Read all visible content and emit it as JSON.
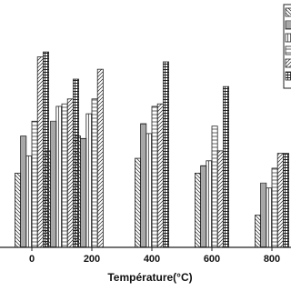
{
  "chart_data": {
    "type": "bar",
    "x_label": "Température(°C)",
    "categories": [
      "0",
      null,
      "200",
      null,
      "400",
      null,
      "600",
      null,
      "800"
    ],
    "ylim": [
      0,
      100
    ],
    "series": [
      {
        "hatch": "back",
        "color": "#222",
        "values": [
          30,
          39,
          45,
          null,
          36,
          null,
          30,
          null,
          13
        ]
      },
      {
        "hatch": "hdense",
        "color": "#222",
        "values": [
          45,
          51,
          44,
          null,
          50,
          null,
          33,
          null,
          26
        ]
      },
      {
        "hatch": "vert",
        "color": "#222",
        "values": [
          37,
          57,
          54,
          null,
          46,
          null,
          35,
          null,
          24
        ]
      },
      {
        "hatch": "horiz",
        "color": "#222",
        "values": [
          51,
          58,
          60,
          null,
          57,
          null,
          49,
          null,
          32
        ]
      },
      {
        "hatch": "fwd",
        "color": "#222",
        "values": [
          77,
          60,
          72,
          null,
          58,
          null,
          39,
          null,
          38
        ]
      },
      {
        "hatch": "cross",
        "color": "#222",
        "values": [
          79,
          68,
          null,
          null,
          75,
          null,
          65,
          null,
          38
        ]
      }
    ]
  }
}
